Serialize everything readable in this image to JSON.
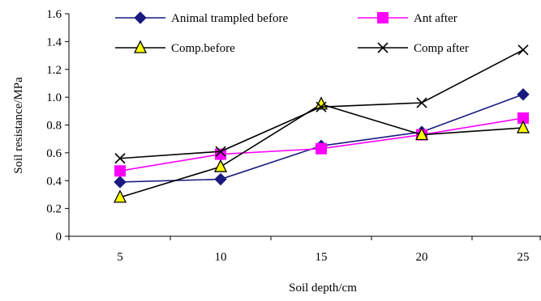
{
  "chart_data": {
    "type": "line",
    "x": [
      5,
      10,
      15,
      20,
      25
    ],
    "xlabel": "Soil depth/cm",
    "ylabel": "Soil resistance/MPa",
    "xticks": [
      "5",
      "10",
      "15",
      "20",
      "25"
    ],
    "yticks": [
      "0",
      "0.2",
      "0.4",
      "0.6",
      "0.8",
      "1.0",
      "1.2",
      "1.4",
      "1.6"
    ],
    "ylim": [
      0,
      1.6
    ],
    "grid": false,
    "legend_position": "top, inside plot",
    "series": [
      {
        "name": "Animal trampled before",
        "values": [
          0.39,
          0.41,
          0.65,
          0.75,
          1.02
        ],
        "color": "#1a1a80",
        "marker": "diamond"
      },
      {
        "name": "Ant after",
        "values": [
          0.47,
          0.59,
          0.63,
          0.73,
          0.85
        ],
        "color": "#ff00ff",
        "marker": "square"
      },
      {
        "name": "Comp.before",
        "values": [
          0.28,
          0.5,
          0.95,
          0.73,
          0.78
        ],
        "color": "#000000",
        "marker": "triangle",
        "marker_fill": "#ffff00"
      },
      {
        "name": "Comp after",
        "values": [
          0.56,
          0.61,
          0.93,
          0.96,
          1.34
        ],
        "color": "#000000",
        "marker": "x"
      }
    ]
  }
}
